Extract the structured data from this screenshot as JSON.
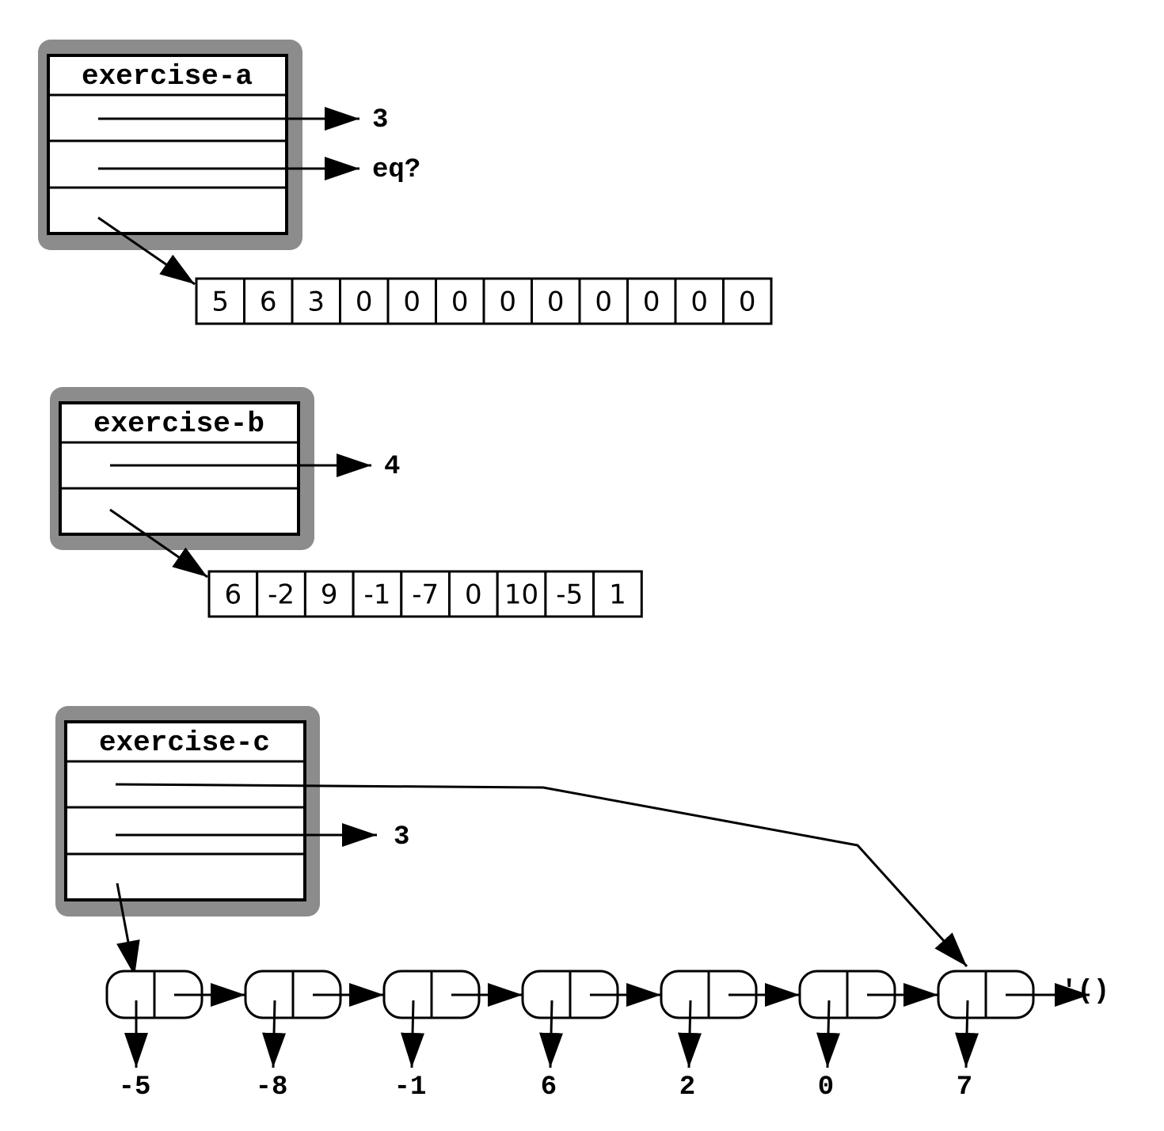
{
  "colors": {
    "frame": "#8c8c8c",
    "line": "#000000",
    "background": "#ffffff"
  },
  "exercise_a": {
    "title": "exercise-a",
    "field_values": [
      "3",
      "eq?"
    ],
    "vector": [
      "5",
      "6",
      "3",
      "0",
      "0",
      "0",
      "0",
      "0",
      "0",
      "0",
      "0",
      "0"
    ]
  },
  "exercise_b": {
    "title": "exercise-b",
    "field_values": [
      "4"
    ],
    "vector": [
      "6",
      "-2",
      "9",
      "-1",
      "-7",
      "0",
      "10",
      "-5",
      "1"
    ]
  },
  "exercise_c": {
    "title": "exercise-c",
    "field_values": [
      "3"
    ],
    "list": [
      "-5",
      "-8",
      "-1",
      "6",
      "2",
      "0",
      "7"
    ],
    "list_end": "'()"
  }
}
